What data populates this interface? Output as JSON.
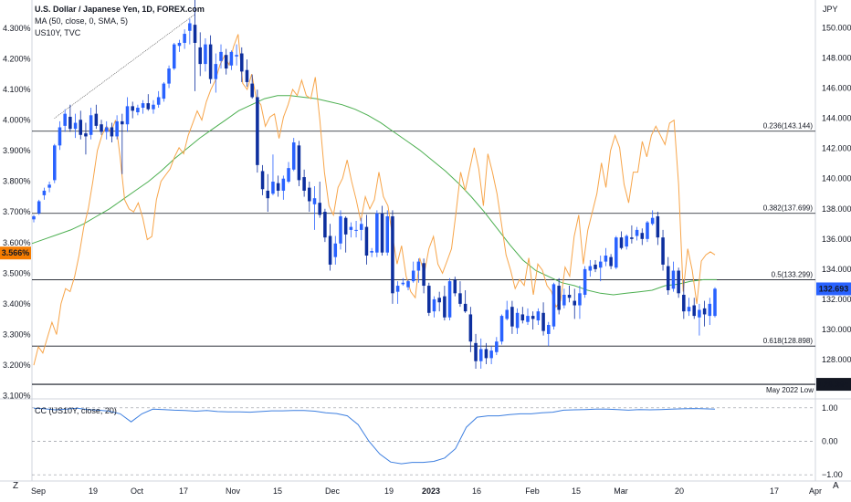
{
  "header": {
    "title": "U.S. Dollar / Japanese Yen, 1D, FOREX.com",
    "ma_legend": "MA (50, close, 0, SMA, 5)",
    "overlay_legend": "US10Y, TVC",
    "currency_label": "JPY",
    "indicator_legend": "CC (US10Y, close, 20)"
  },
  "buttons": {
    "zoom_label": "Z",
    "auto_label": "A"
  },
  "colors": {
    "bull": "#2962ff",
    "bear": "#0d2f9e",
    "ma": "#4caf50",
    "overlay": "#f7a54a",
    "cc": "#3d7fe0",
    "price_tag": "#2962ff",
    "left_tag": "#f57c00",
    "low_tag": "#131722"
  },
  "chart_data": {
    "type": "candlestick",
    "title": "U.S. Dollar / Japanese Yen, 1D, FOREX.com",
    "right_axis": {
      "unit": "JPY",
      "range": [
        125.4,
        151.6
      ],
      "ticks": [
        "150.000",
        "148.000",
        "146.000",
        "144.000",
        "142.000",
        "140.000",
        "138.000",
        "136.000",
        "134.000",
        "132.000",
        "130.000",
        "128.000"
      ]
    },
    "left_axis": {
      "series": "US10Y",
      "range": [
        3.09,
        4.38
      ],
      "ticks": [
        "4.300%",
        "4.200%",
        "4.100%",
        "4.000%",
        "3.900%",
        "3.800%",
        "3.700%",
        "3.600%",
        "3.500%",
        "3.400%",
        "3.300%",
        "3.200%",
        "3.100%"
      ]
    },
    "x_axis": {
      "ticks": [
        "Sep",
        "19",
        "Oct",
        "17",
        "Nov",
        "15",
        "Dec",
        "19",
        "2023",
        "16",
        "Feb",
        "15",
        "Mar",
        "20",
        "17",
        "Apr"
      ]
    },
    "current_price": "132.693",
    "current_us10y": "3.566%",
    "fib_levels": [
      {
        "label": "0.236(143.144)",
        "value": 143.144
      },
      {
        "label": "0.382(137.699)",
        "value": 137.699
      },
      {
        "label": "0.5(133.299)",
        "value": 133.299
      },
      {
        "label": "0.618(128.898)",
        "value": 128.898
      }
    ],
    "may_2022_low": {
      "label": "May 2022 Low",
      "value": "126.364",
      "level": 126.364
    },
    "trendline": {
      "from": [
        3.96,
        144.0
      ],
      "to": [
        0.0,
        150.9
      ]
    },
    "price_candles": [
      [
        137.3,
        137.6,
        137.1,
        137.5
      ],
      [
        137.7,
        138.6,
        137.6,
        138.5
      ],
      [
        138.9,
        139.4,
        138.6,
        139.2
      ],
      [
        139.4,
        139.8,
        139.1,
        139.6
      ],
      [
        139.9,
        142.3,
        139.7,
        142.2
      ],
      [
        142.2,
        143.8,
        141.9,
        143.4
      ],
      [
        143.5,
        144.6,
        143.1,
        144.3
      ],
      [
        144.1,
        144.9,
        143.1,
        143.3
      ],
      [
        143.3,
        144.3,
        142.7,
        143.7
      ],
      [
        143.9,
        144.5,
        142.6,
        142.9
      ],
      [
        143.0,
        143.7,
        141.6,
        142.8
      ],
      [
        142.9,
        144.7,
        142.6,
        144.2
      ],
      [
        144.3,
        144.9,
        143.3,
        143.5
      ],
      [
        143.6,
        143.9,
        142.9,
        143.1
      ],
      [
        143.1,
        143.8,
        142.6,
        143.4
      ],
      [
        143.4,
        143.7,
        142.4,
        142.8
      ],
      [
        142.8,
        144.2,
        142.6,
        143.8
      ],
      [
        143.8,
        144.3,
        140.3,
        143.6
      ],
      [
        143.6,
        145.4,
        143.1,
        144.8
      ],
      [
        144.8,
        145.1,
        144.0,
        144.5
      ],
      [
        144.4,
        144.9,
        144.2,
        144.7
      ],
      [
        144.7,
        145.2,
        144.3,
        145.0
      ],
      [
        145.0,
        145.6,
        144.5,
        144.6
      ],
      [
        144.6,
        145.2,
        144.3,
        144.9
      ],
      [
        144.9,
        145.8,
        144.7,
        145.4
      ],
      [
        145.3,
        146.4,
        145.1,
        146.3
      ],
      [
        146.3,
        147.5,
        146.0,
        147.3
      ],
      [
        147.3,
        149.0,
        147.2,
        148.9
      ],
      [
        148.8,
        149.2,
        148.4,
        149.0
      ],
      [
        149.0,
        149.9,
        148.6,
        149.6
      ],
      [
        149.8,
        150.6,
        148.9,
        150.3
      ],
      [
        150.2,
        151.9,
        145.8,
        149.0
      ],
      [
        148.7,
        149.7,
        146.8,
        147.6
      ],
      [
        147.6,
        149.3,
        147.1,
        148.9
      ],
      [
        148.9,
        149.5,
        146.3,
        146.6
      ],
      [
        146.6,
        148.3,
        145.7,
        147.6
      ],
      [
        147.8,
        148.9,
        147.3,
        148.4
      ],
      [
        148.2,
        148.6,
        146.9,
        147.3
      ],
      [
        147.5,
        148.5,
        147.2,
        148.4
      ],
      [
        148.1,
        148.9,
        147.5,
        148.2
      ],
      [
        148.3,
        148.7,
        146.4,
        147.1
      ],
      [
        147.2,
        147.9,
        146.1,
        146.4
      ],
      [
        146.3,
        146.9,
        145.3,
        145.4
      ],
      [
        145.4,
        145.9,
        140.4,
        140.9
      ],
      [
        140.5,
        140.9,
        138.9,
        139.3
      ],
      [
        139.2,
        140.3,
        137.8,
        138.7
      ],
      [
        139.0,
        141.6,
        138.9,
        139.8
      ],
      [
        139.7,
        140.2,
        138.8,
        139.2
      ],
      [
        139.2,
        140.2,
        138.6,
        140.0
      ],
      [
        139.8,
        141.1,
        139.7,
        140.7
      ],
      [
        140.6,
        142.7,
        140.5,
        142.4
      ],
      [
        142.2,
        142.5,
        139.5,
        139.9
      ],
      [
        140.1,
        140.6,
        138.8,
        139.2
      ],
      [
        139.4,
        139.8,
        137.8,
        138.5
      ],
      [
        138.3,
        139.5,
        136.6,
        138.7
      ],
      [
        138.4,
        139.8,
        137.4,
        137.6
      ],
      [
        137.8,
        138.0,
        135.8,
        136.1
      ],
      [
        136.2,
        137.0,
        133.9,
        134.3
      ],
      [
        134.8,
        136.2,
        134.3,
        135.7
      ],
      [
        135.7,
        137.9,
        135.3,
        137.5
      ],
      [
        137.4,
        137.5,
        135.1,
        136.3
      ],
      [
        136.6,
        137.1,
        136.1,
        136.8
      ],
      [
        136.6,
        137.2,
        136.1,
        136.6
      ],
      [
        136.6,
        137.4,
        135.9,
        137.0
      ],
      [
        136.8,
        137.6,
        134.3,
        134.9
      ],
      [
        135.1,
        135.4,
        134.8,
        135.2
      ],
      [
        135.1,
        137.9,
        134.8,
        137.7
      ],
      [
        137.7,
        138.2,
        134.9,
        135.1
      ],
      [
        135.1,
        137.9,
        134.9,
        137.5
      ],
      [
        137.5,
        137.9,
        131.7,
        132.4
      ],
      [
        132.5,
        133.2,
        131.7,
        132.9
      ],
      [
        133.0,
        133.4,
        132.9,
        133.1
      ],
      [
        132.8,
        133.3,
        132.6,
        133.2
      ],
      [
        133.2,
        134.5,
        133.1,
        133.9
      ],
      [
        133.9,
        134.7,
        133.1,
        134.5
      ],
      [
        134.4,
        134.7,
        132.4,
        132.9
      ],
      [
        132.9,
        133.1,
        130.9,
        131.1
      ],
      [
        131.2,
        132.2,
        130.8,
        132.0
      ],
      [
        132.1,
        132.5,
        131.2,
        131.8
      ],
      [
        132.2,
        132.9,
        130.6,
        130.8
      ],
      [
        130.8,
        133.4,
        130.6,
        133.2
      ],
      [
        133.3,
        133.5,
        132.2,
        132.4
      ],
      [
        132.4,
        133.2,
        131.5,
        131.7
      ],
      [
        131.7,
        132.6,
        131.1,
        131.2
      ],
      [
        131.0,
        131.5,
        128.5,
        129.2
      ],
      [
        129.1,
        129.7,
        127.4,
        127.9
      ],
      [
        127.9,
        129.4,
        127.4,
        128.7
      ],
      [
        128.7,
        129.1,
        127.7,
        128.1
      ],
      [
        128.1,
        128.9,
        127.7,
        128.6
      ],
      [
        128.5,
        129.5,
        128.3,
        129.2
      ],
      [
        129.2,
        131.0,
        129.0,
        130.9
      ],
      [
        130.7,
        131.9,
        130.6,
        131.3
      ],
      [
        131.5,
        131.9,
        129.7,
        130.2
      ],
      [
        130.1,
        131.4,
        129.7,
        131.1
      ],
      [
        131.0,
        131.5,
        130.4,
        130.6
      ],
      [
        130.5,
        131.4,
        130.3,
        130.9
      ],
      [
        130.9,
        131.2,
        130.0,
        130.7
      ],
      [
        130.6,
        131.4,
        130.3,
        131.2
      ],
      [
        131.1,
        131.8,
        129.6,
        129.9
      ],
      [
        129.7,
        130.5,
        128.9,
        130.3
      ],
      [
        130.2,
        133.1,
        130.0,
        133.0
      ],
      [
        132.9,
        133.4,
        131.0,
        131.3
      ],
      [
        131.6,
        132.7,
        131.4,
        132.3
      ],
      [
        132.3,
        132.9,
        131.8,
        132.1
      ],
      [
        131.9,
        132.7,
        130.7,
        131.6
      ],
      [
        131.6,
        132.9,
        130.7,
        132.4
      ],
      [
        132.3,
        134.2,
        132.1,
        134.0
      ],
      [
        133.9,
        134.6,
        133.5,
        134.2
      ],
      [
        134.3,
        134.6,
        133.8,
        134.0
      ],
      [
        134.1,
        134.9,
        133.2,
        134.5
      ],
      [
        134.5,
        135.4,
        134.2,
        134.9
      ],
      [
        134.8,
        135.0,
        134.0,
        134.2
      ],
      [
        134.1,
        136.2,
        134.0,
        136.1
      ],
      [
        136.1,
        136.5,
        135.3,
        135.4
      ],
      [
        135.5,
        136.3,
        135.3,
        136.2
      ],
      [
        136.1,
        136.9,
        135.7,
        136.0
      ],
      [
        136.2,
        136.8,
        135.9,
        136.6
      ],
      [
        136.4,
        136.7,
        135.6,
        136.0
      ],
      [
        136.0,
        137.2,
        135.8,
        137.1
      ],
      [
        137.0,
        137.9,
        136.9,
        137.4
      ],
      [
        137.5,
        137.8,
        135.6,
        136.1
      ],
      [
        136.1,
        136.6,
        133.9,
        134.3
      ],
      [
        134.2,
        134.8,
        132.3,
        132.6
      ],
      [
        132.7,
        134.5,
        132.5,
        133.9
      ],
      [
        133.9,
        134.1,
        132.1,
        132.4
      ],
      [
        132.3,
        133.3,
        130.7,
        131.2
      ],
      [
        131.2,
        132.1,
        130.9,
        131.5
      ],
      [
        131.6,
        132.1,
        130.7,
        130.9
      ],
      [
        130.8,
        131.7,
        129.6,
        131.3
      ],
      [
        131.4,
        131.9,
        130.2,
        131.0
      ],
      [
        130.9,
        132.1,
        130.3,
        131.7
      ],
      [
        130.9,
        132.8,
        130.8,
        132.7
      ]
    ],
    "us10y_series": [
      3.2,
      3.26,
      3.24,
      3.29,
      3.34,
      3.3,
      3.4,
      3.45,
      3.44,
      3.49,
      3.56,
      3.65,
      3.71,
      3.8,
      3.9,
      3.95,
      3.98,
      3.96,
      4.0,
      3.88,
      3.74,
      3.71,
      3.7,
      3.73,
      3.68,
      3.61,
      3.62,
      3.74,
      3.8,
      3.82,
      3.84,
      3.88,
      3.91,
      3.89,
      3.95,
      3.99,
      4.03,
      4.0,
      4.06,
      4.1,
      4.13,
      4.18,
      4.21,
      4.18,
      4.24,
      4.28,
      4.12,
      4.1,
      4.15,
      4.07,
      4.05,
      3.98,
      4.01,
      4.02,
      3.94,
      4.01,
      4.05,
      4.1,
      4.08,
      4.13,
      4.08,
      4.07,
      4.14,
      4.0,
      3.83,
      3.72,
      3.69,
      3.78,
      3.81,
      3.87,
      3.8,
      3.74,
      3.67,
      3.75,
      3.71,
      3.74,
      3.83,
      3.75,
      3.72,
      3.62,
      3.53,
      3.59,
      3.49,
      3.44,
      3.42,
      3.55,
      3.5,
      3.58,
      3.62,
      3.53,
      3.5,
      3.54,
      3.58,
      3.7,
      3.83,
      3.77,
      3.84,
      3.91,
      3.84,
      3.72,
      3.89,
      3.83,
      3.76,
      3.66,
      3.56,
      3.51,
      3.45,
      3.48,
      3.46,
      3.55,
      3.43,
      3.53,
      3.51,
      3.46,
      3.44,
      3.39,
      3.41,
      3.52,
      3.49,
      3.62,
      3.69,
      3.53,
      3.64,
      3.7,
      3.76,
      3.86,
      3.78,
      3.9,
      3.95,
      3.91,
      3.79,
      3.73,
      3.83,
      3.83,
      3.93,
      3.88,
      3.95,
      3.98,
      3.95,
      3.92,
      3.99,
      4.0,
      3.79,
      3.44,
      3.58,
      3.51,
      3.4,
      3.54,
      3.56,
      3.57,
      3.56
    ],
    "ma_series": [
      135.7,
      136.0,
      136.3,
      136.6,
      137.0,
      137.5,
      138.0,
      138.6,
      139.2,
      139.8,
      140.5,
      141.3,
      142.0,
      142.7,
      143.3,
      143.9,
      144.5,
      144.9,
      145.3,
      145.5,
      145.5,
      145.4,
      145.3,
      145.1,
      144.9,
      144.6,
      144.2,
      143.7,
      143.1,
      142.5,
      141.9,
      141.2,
      140.5,
      139.7,
      138.8,
      137.8,
      136.7,
      135.6,
      134.6,
      133.9,
      133.5,
      133.1,
      132.9,
      132.6,
      132.4,
      132.3,
      132.4,
      132.5,
      132.6,
      132.9,
      133.0,
      133.2,
      133.3,
      133.3
    ],
    "cc_series": [
      0.99,
      0.97,
      0.94,
      0.96,
      0.99,
      0.95,
      0.93,
      0.9,
      0.82,
      0.58,
      0.82,
      0.96,
      0.95,
      0.93,
      0.92,
      0.9,
      0.92,
      0.89,
      0.88,
      0.88,
      0.87,
      0.89,
      0.91,
      0.91,
      0.92,
      0.92,
      0.9,
      0.85,
      0.83,
      0.76,
      0.5,
      0.0,
      -0.38,
      -0.62,
      -0.67,
      -0.63,
      -0.63,
      -0.6,
      -0.5,
      -0.22,
      0.42,
      0.72,
      0.76,
      0.76,
      0.8,
      0.82,
      0.82,
      0.85,
      0.87,
      0.93,
      0.94,
      0.95,
      0.96,
      0.96,
      0.95,
      0.93,
      0.95,
      0.94,
      0.95,
      0.96,
      0.97,
      0.98,
      0.97,
      0.96
    ],
    "cc_axis": {
      "range": [
        -1.05,
        1.05
      ],
      "ticks": [
        "1.00",
        "0.00",
        "−1.00"
      ]
    }
  }
}
